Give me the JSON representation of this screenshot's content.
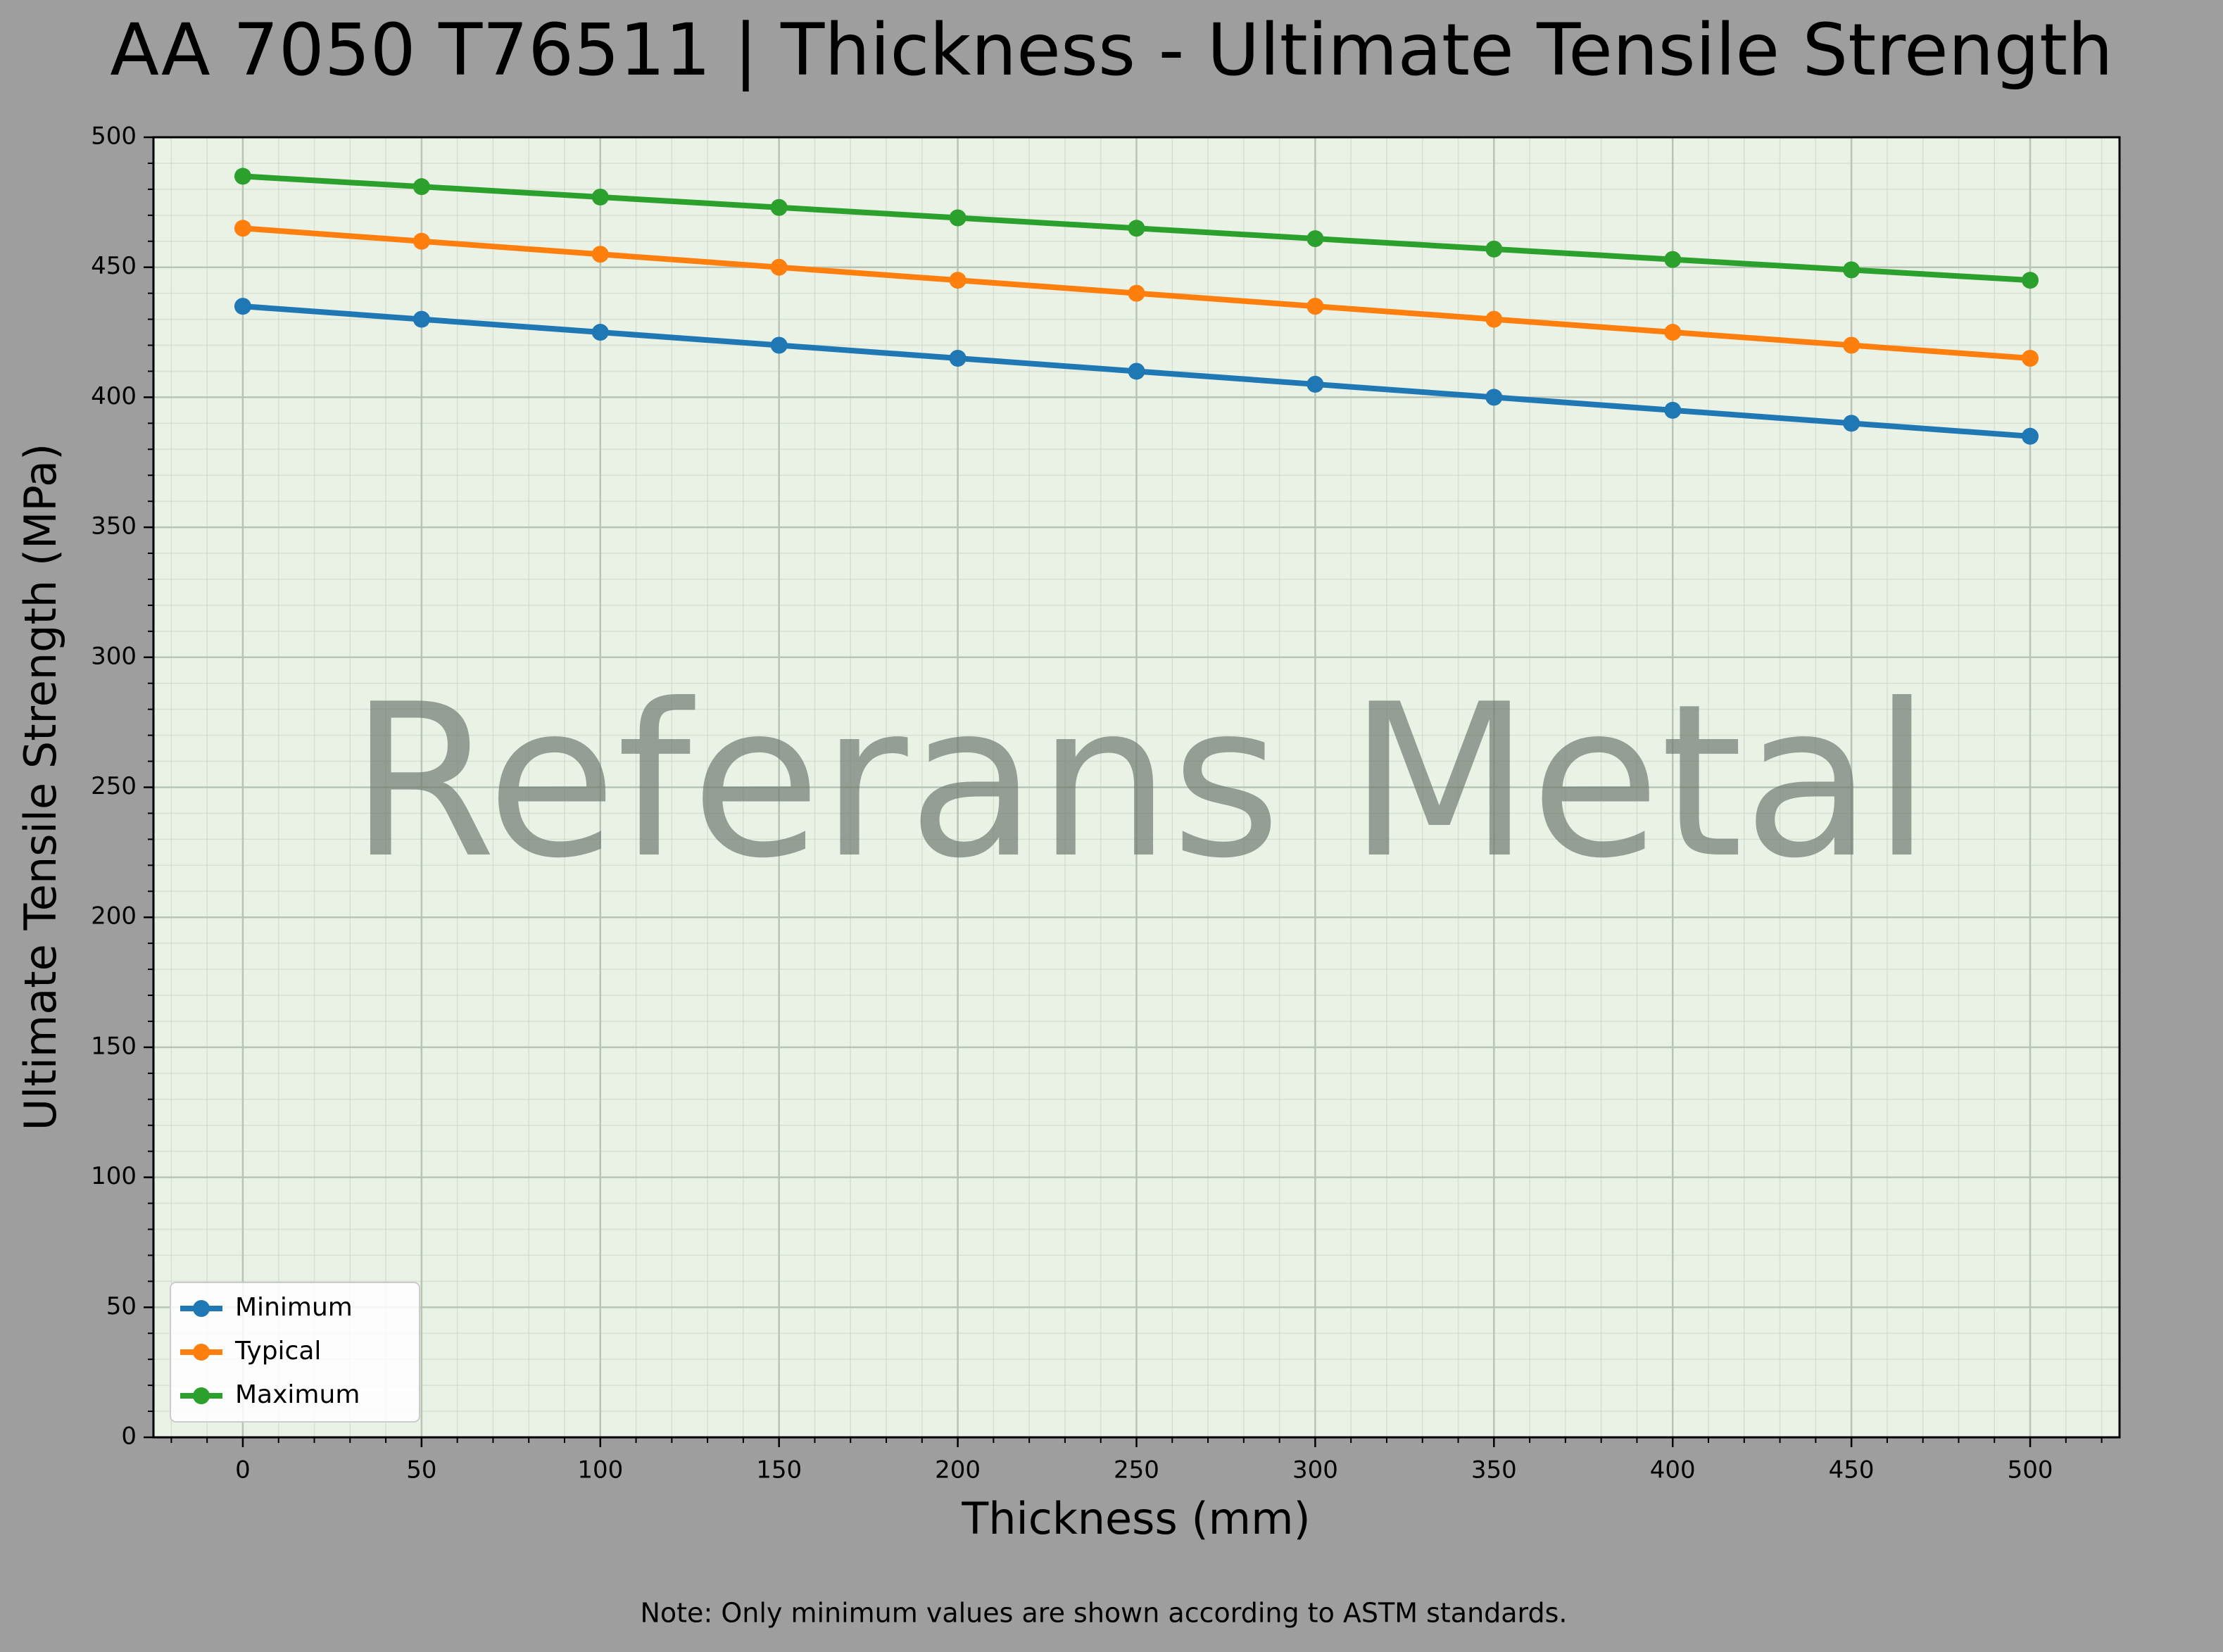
{
  "chart_data": {
    "type": "line",
    "title": "AA 7050 T76511 | Thickness - Ultimate Tensile Strength",
    "x_label": "Thickness (mm)",
    "y_label": "Ultimate Tensile Strength (MPa)",
    "watermark": "Referans Metal",
    "note": "Note: Only minimum values are shown according to ASTM standards.",
    "x": [
      0,
      50,
      100,
      150,
      200,
      250,
      300,
      350,
      400,
      450,
      500
    ],
    "series": [
      {
        "name": "Minimum",
        "color": "#1f77b4",
        "values": [
          435,
          430,
          425,
          420,
          415,
          410,
          405,
          400,
          395,
          390,
          385
        ]
      },
      {
        "name": "Typical",
        "color": "#ff7f0e",
        "values": [
          465,
          460,
          455,
          450,
          445,
          440,
          435,
          430,
          425,
          420,
          415
        ]
      },
      {
        "name": "Maximum",
        "color": "#2ca02c",
        "values": [
          485,
          481,
          477,
          473,
          469,
          465,
          461,
          457,
          453,
          449,
          445
        ]
      }
    ],
    "xlim": [
      -25,
      525
    ],
    "ylim": [
      0,
      500
    ],
    "xticks": [
      0,
      50,
      100,
      150,
      200,
      250,
      300,
      350,
      400,
      450,
      500
    ],
    "yticks": [
      0,
      50,
      100,
      150,
      200,
      250,
      300,
      350,
      400,
      450,
      500
    ],
    "grid": true,
    "minor_grid": true,
    "legend": "lower left"
  }
}
